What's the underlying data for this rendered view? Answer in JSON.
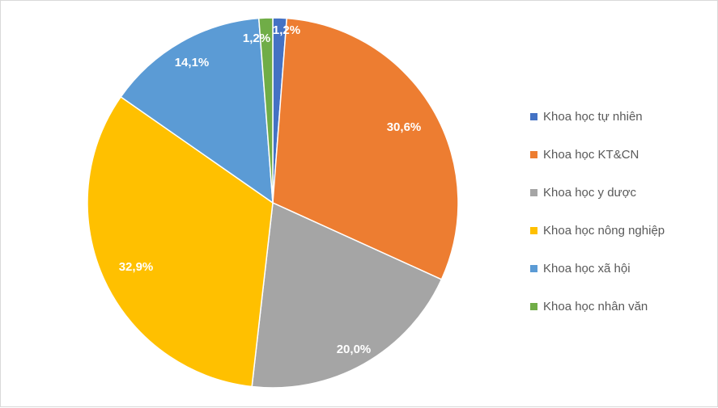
{
  "chart_data": {
    "type": "pie",
    "title": "",
    "legend_position": "right",
    "series": [
      {
        "name": "Khoa học tự nhiên",
        "value": 1.2,
        "label": "1,2%",
        "color": "#4472C4"
      },
      {
        "name": "Khoa học KT&CN",
        "value": 30.6,
        "label": "30,6%",
        "color": "#ED7D31"
      },
      {
        "name": "Khoa học y dược",
        "value": 20.0,
        "label": "20,0%",
        "color": "#A5A5A5"
      },
      {
        "name": "Khoa học nông nghiệp",
        "value": 32.9,
        "label": "32,9%",
        "color": "#FFC000"
      },
      {
        "name": "Khoa học xã hội",
        "value": 14.1,
        "label": "14,1%",
        "color": "#5B9BD5"
      },
      {
        "name": "Khoa học nhân văn",
        "value": 1.2,
        "label": "1,2%",
        "color": "#70AD47"
      }
    ]
  }
}
